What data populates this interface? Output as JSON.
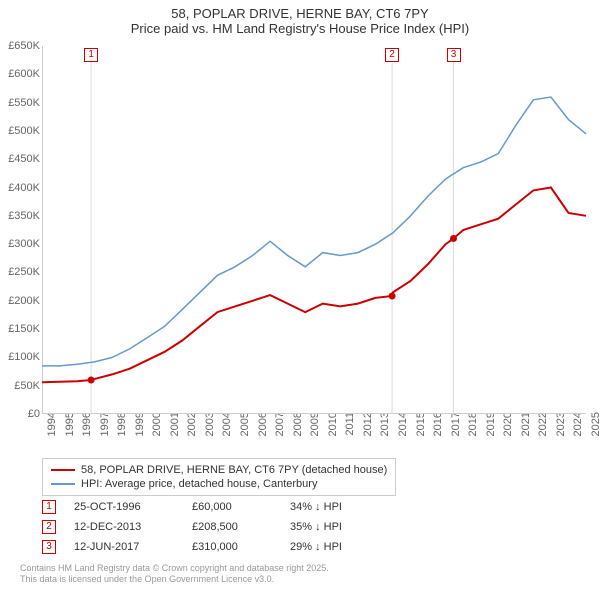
{
  "title": {
    "line1": "58, POPLAR DRIVE, HERNE BAY, CT6 7PY",
    "line2": "Price paid vs. HM Land Registry's House Price Index (HPI)"
  },
  "chart": {
    "type": "line",
    "background_color": "#ffffff",
    "grid_color": "#eeeeee",
    "axis_color": "#cccccc",
    "label_color": "#666666",
    "label_fontsize": 11,
    "ylim": [
      0,
      650000
    ],
    "ytick_step": 50000,
    "yticks": [
      "£0",
      "£50K",
      "£100K",
      "£150K",
      "£200K",
      "£250K",
      "£300K",
      "£350K",
      "£400K",
      "£450K",
      "£500K",
      "£550K",
      "£600K",
      "£650K"
    ],
    "xlim": [
      1994,
      2025
    ],
    "xticks": [
      1994,
      1995,
      1996,
      1997,
      1998,
      1999,
      2000,
      2001,
      2002,
      2003,
      2004,
      2005,
      2006,
      2007,
      2008,
      2009,
      2010,
      2011,
      2012,
      2013,
      2014,
      2015,
      2016,
      2017,
      2018,
      2019,
      2020,
      2021,
      2022,
      2023,
      2024,
      2025
    ],
    "series": [
      {
        "name": "price_paid",
        "label": "58, POPLAR DRIVE, HERNE BAY, CT6 7PY (detached house)",
        "color": "#cc0000",
        "line_width": 2,
        "points": [
          [
            1994,
            56000
          ],
          [
            1995,
            57000
          ],
          [
            1996,
            58000
          ],
          [
            1996.8,
            60000
          ],
          [
            1997,
            62000
          ],
          [
            1998,
            70000
          ],
          [
            1999,
            80000
          ],
          [
            2000,
            95000
          ],
          [
            2001,
            110000
          ],
          [
            2002,
            130000
          ],
          [
            2003,
            155000
          ],
          [
            2004,
            180000
          ],
          [
            2005,
            190000
          ],
          [
            2006,
            200000
          ],
          [
            2007,
            210000
          ],
          [
            2008,
            195000
          ],
          [
            2009,
            180000
          ],
          [
            2010,
            195000
          ],
          [
            2011,
            190000
          ],
          [
            2012,
            195000
          ],
          [
            2013,
            205000
          ],
          [
            2013.95,
            208500
          ],
          [
            2014,
            215000
          ],
          [
            2015,
            235000
          ],
          [
            2016,
            265000
          ],
          [
            2017,
            300000
          ],
          [
            2017.45,
            310000
          ],
          [
            2018,
            325000
          ],
          [
            2019,
            335000
          ],
          [
            2020,
            345000
          ],
          [
            2021,
            370000
          ],
          [
            2022,
            395000
          ],
          [
            2023,
            400000
          ],
          [
            2024,
            355000
          ],
          [
            2025,
            350000
          ]
        ],
        "sale_markers": [
          {
            "x": 1996.8,
            "y": 60000,
            "n": "1"
          },
          {
            "x": 2013.95,
            "y": 208500,
            "n": "2"
          },
          {
            "x": 2017.45,
            "y": 310000,
            "n": "3"
          }
        ]
      },
      {
        "name": "hpi",
        "label": "HPI: Average price, detached house, Canterbury",
        "color": "#6699cc",
        "line_width": 1.5,
        "points": [
          [
            1994,
            85000
          ],
          [
            1995,
            85000
          ],
          [
            1996,
            88000
          ],
          [
            1997,
            92000
          ],
          [
            1998,
            100000
          ],
          [
            1999,
            115000
          ],
          [
            2000,
            135000
          ],
          [
            2001,
            155000
          ],
          [
            2002,
            185000
          ],
          [
            2003,
            215000
          ],
          [
            2004,
            245000
          ],
          [
            2005,
            260000
          ],
          [
            2006,
            280000
          ],
          [
            2007,
            305000
          ],
          [
            2008,
            280000
          ],
          [
            2009,
            260000
          ],
          [
            2010,
            285000
          ],
          [
            2011,
            280000
          ],
          [
            2012,
            285000
          ],
          [
            2013,
            300000
          ],
          [
            2014,
            320000
          ],
          [
            2015,
            350000
          ],
          [
            2016,
            385000
          ],
          [
            2017,
            415000
          ],
          [
            2018,
            435000
          ],
          [
            2019,
            445000
          ],
          [
            2020,
            460000
          ],
          [
            2021,
            510000
          ],
          [
            2022,
            555000
          ],
          [
            2023,
            560000
          ],
          [
            2024,
            520000
          ],
          [
            2025,
            495000
          ]
        ]
      }
    ],
    "event_markers": [
      {
        "n": "1",
        "x": 1996.8,
        "color": "#cc0000"
      },
      {
        "n": "2",
        "x": 2013.95,
        "color": "#cc0000"
      },
      {
        "n": "3",
        "x": 2017.45,
        "color": "#cc0000"
      }
    ]
  },
  "legend": {
    "items": [
      {
        "color": "#cc0000",
        "label": "58, POPLAR DRIVE, HERNE BAY, CT6 7PY (detached house)"
      },
      {
        "color": "#6699cc",
        "label": "HPI: Average price, detached house, Canterbury"
      }
    ]
  },
  "sales": [
    {
      "n": "1",
      "date": "25-OCT-1996",
      "price": "£60,000",
      "diff": "34% ↓ HPI"
    },
    {
      "n": "2",
      "date": "12-DEC-2013",
      "price": "£208,500",
      "diff": "35% ↓ HPI"
    },
    {
      "n": "3",
      "date": "12-JUN-2017",
      "price": "£310,000",
      "diff": "29% ↓ HPI"
    }
  ],
  "footer": {
    "line1": "Contains HM Land Registry data © Crown copyright and database right 2025.",
    "line2": "This data is licensed under the Open Government Licence v3.0."
  }
}
